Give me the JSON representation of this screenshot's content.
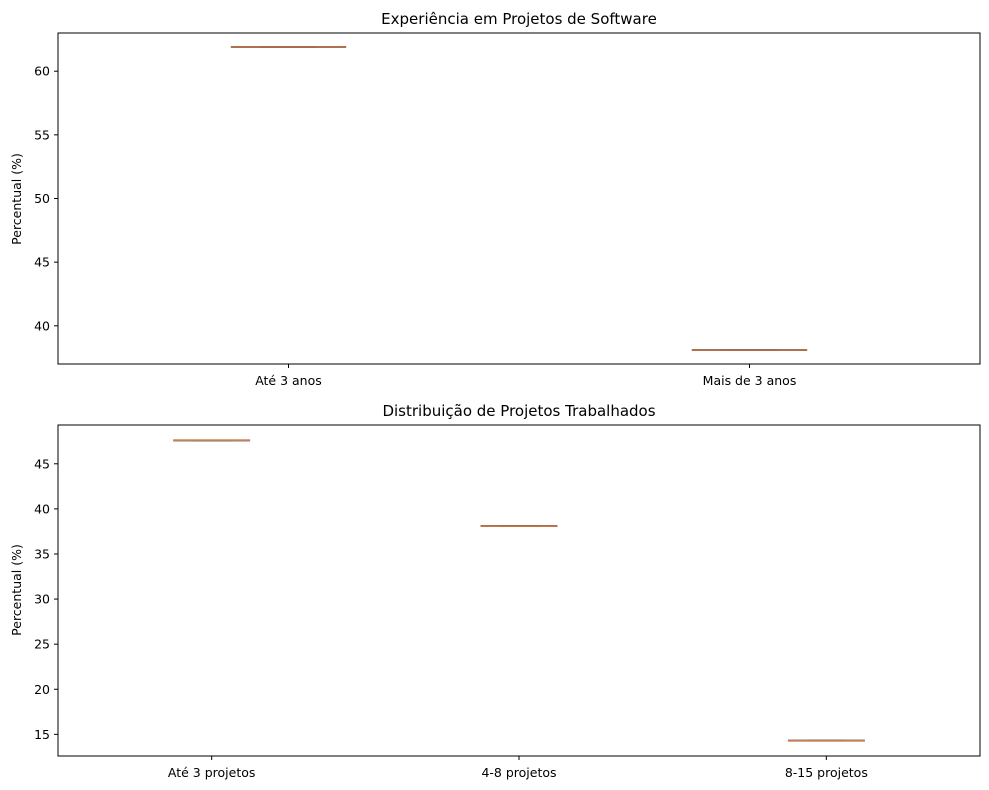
{
  "chart_data": [
    {
      "type": "box",
      "title": "Experiência em Projetos de Software",
      "xlabel": "",
      "ylabel": "Percentual (%)",
      "categories": [
        "Até 3 anos",
        "Mais de 3 anos"
      ],
      "values": [
        61.9,
        38.1
      ],
      "ylim": [
        37.0,
        63.0
      ],
      "yticks": [
        40,
        45,
        50,
        55,
        60
      ],
      "grid": false,
      "colors": {
        "median": "#dd8452",
        "box": "#4c4c4c"
      }
    },
    {
      "type": "box",
      "title": "Distribuição de Projetos Trabalhados",
      "xlabel": "",
      "ylabel": "Percentual (%)",
      "categories": [
        "Até 3 projetos",
        "4-8 projetos",
        "8-15 projetos"
      ],
      "values": [
        47.6,
        38.1,
        14.3
      ],
      "ylim": [
        12.6,
        49.3
      ],
      "yticks": [
        15,
        20,
        25,
        30,
        35,
        40,
        45
      ],
      "grid": false,
      "colors": {
        "median": "#dd8452",
        "box": "#4c4c4c"
      }
    }
  ]
}
